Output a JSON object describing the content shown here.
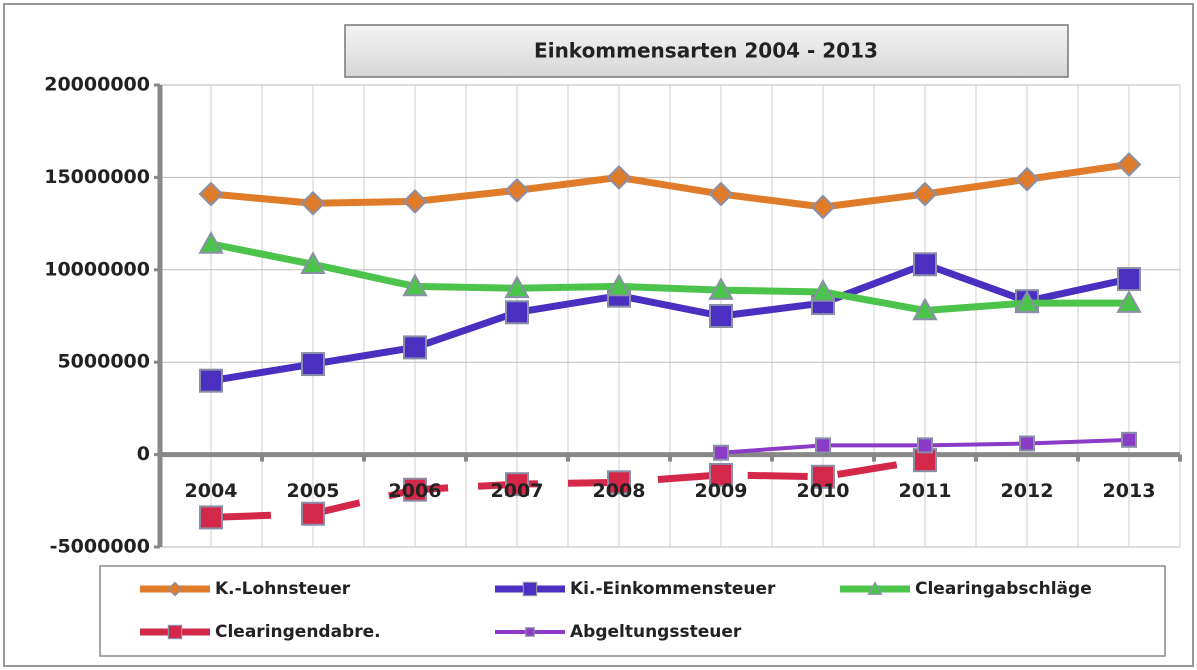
{
  "chart_data": {
    "type": "line",
    "title": "Einkommensarten 2004 - 2013",
    "categories": [
      "2004",
      "2005",
      "2006",
      "2007",
      "2008",
      "2009",
      "2010",
      "2011",
      "2012",
      "2013"
    ],
    "ylim": [
      -5000000,
      20000000
    ],
    "yticks": [
      -5000000,
      0,
      5000000,
      10000000,
      15000000,
      20000000
    ],
    "grid": true,
    "series": [
      {
        "name": "K.-Lohnsteuer",
        "color": "#e07b2a",
        "marker": "diamond",
        "values": [
          14100000,
          13600000,
          13700000,
          14300000,
          15000000,
          14100000,
          13400000,
          14100000,
          14900000,
          15700000
        ]
      },
      {
        "name": "Ki.-Einkommensteuer",
        "color": "#4a2fc0",
        "marker": "square",
        "values": [
          4000000,
          4900000,
          5800000,
          7700000,
          8600000,
          7500000,
          8200000,
          10300000,
          8300000,
          9500000
        ]
      },
      {
        "name": "Clearingabschläge",
        "color": "#4cc44c",
        "marker": "triangle",
        "values": [
          11400000,
          10300000,
          9100000,
          9000000,
          9100000,
          8900000,
          8800000,
          7800000,
          8200000,
          8200000
        ]
      },
      {
        "name": "Clearingendabre.",
        "color": "#d4284a",
        "marker": "square",
        "dash": true,
        "values": [
          -3400000,
          -3200000,
          -1900000,
          -1600000,
          -1500000,
          -1100000,
          -1200000,
          -300000,
          null,
          null
        ]
      },
      {
        "name": "Abgeltungssteuer",
        "color": "#8a3cc8",
        "marker": "smallsquare",
        "values": [
          null,
          null,
          null,
          null,
          null,
          100000,
          500000,
          500000,
          600000,
          800000
        ]
      }
    ]
  }
}
